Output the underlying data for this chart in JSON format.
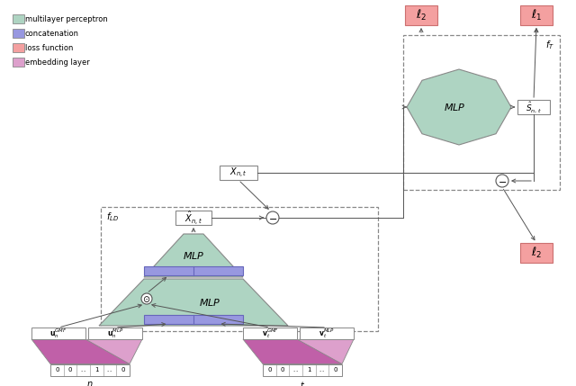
{
  "bg_color": "#ffffff",
  "mlp_color": "#aed4c2",
  "concat_color": "#9898e0",
  "loss_color": "#f4a0a0",
  "loss_edge_color": "#cc7070",
  "embed_dark": "#c060a8",
  "embed_light": "#dda0cc",
  "line_color": "#555555",
  "box_edge": "#888888",
  "legend": [
    {
      "label": "multilayer perceptron",
      "color": "#aed4c2"
    },
    {
      "label": "concatenation",
      "color": "#9898e0"
    },
    {
      "label": "loss function",
      "color": "#f4a0a0"
    },
    {
      "label": "embedding layer",
      "color": "#dda0cc"
    }
  ]
}
